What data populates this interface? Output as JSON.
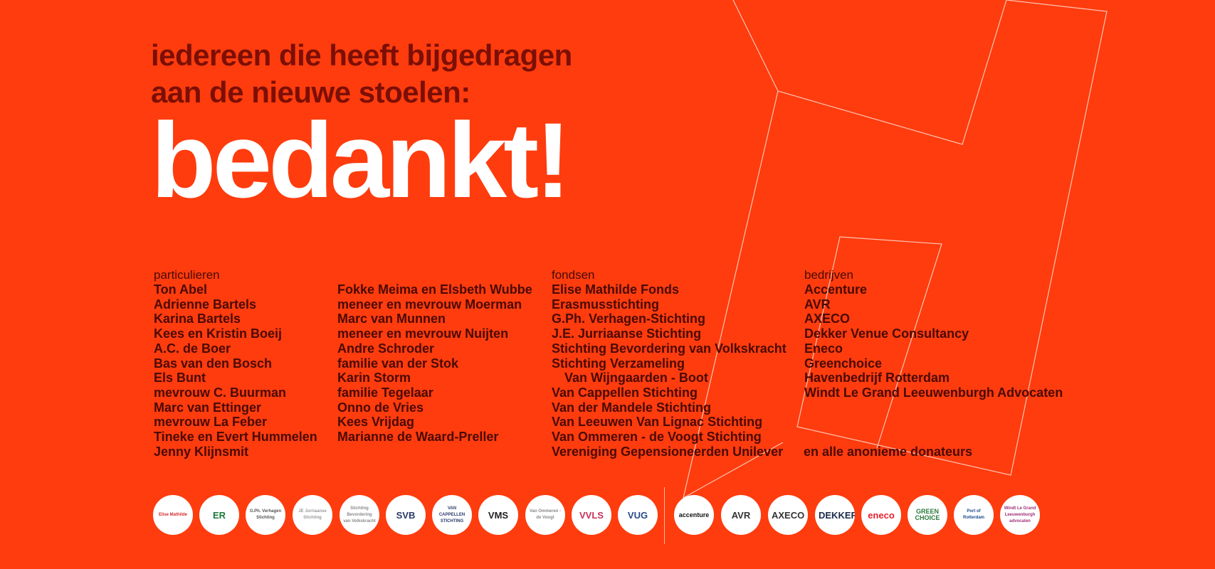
{
  "heading": {
    "line1": "iedereen die heeft bijgedragen",
    "line2": "aan de nieuwe stoelen:",
    "big": "bedankt!"
  },
  "columns": {
    "particulieren": {
      "heading": "particulieren",
      "items": [
        "Ton Abel",
        "Adrienne Bartels",
        "Karina Bartels",
        "Kees en Kristin Boeij",
        "A.C. de Boer",
        "Bas van den Bosch",
        "Els Bunt",
        "mevrouw C. Buurman",
        "Marc van Ettinger",
        "mevrouw La Feber",
        "Tineke en Evert Hummelen",
        "Jenny Klijnsmit"
      ]
    },
    "particulieren2": {
      "items": [
        "Fokke Meima en Elsbeth Wubbe",
        "meneer en mevrouw Moerman",
        "Marc van Munnen",
        "meneer en mevrouw Nuijten",
        "Andre Schroder",
        "familie van der Stok",
        "Karin Storm",
        "familie Tegelaar",
        "Onno de Vries",
        "Kees Vrijdag",
        "Marianne de Waard-Preller"
      ]
    },
    "fondsen": {
      "heading": "fondsen",
      "items": [
        "Elise Mathilde Fonds",
        "Erasmusstichting",
        "G.Ph. Verhagen-Stichting",
        "J.E. Jurriaanse Stichting",
        "Stichting Bevordering van Volkskracht",
        "Stichting Verzameling",
        "Van Wijngaarden - Boot",
        "Van Cappellen Stichting",
        "Van der Mandele Stichting",
        "Van Leeuwen Van Lignac Stichting",
        "Van Ommeren - de Voogt Stichting",
        "Vereniging Gepensioneerden Unilever"
      ]
    },
    "bedrijven": {
      "heading": "bedrijven",
      "items": [
        "Accenture",
        "AVR",
        "AXECO",
        "Dekker Venue Consultancy",
        "Eneco",
        "Greenchoice",
        "Havenbedrijf Rotterdam",
        "Windt Le Grand Leeuwenburgh Advocaten"
      ]
    }
  },
  "anonymous": "en alle anonieme donateurs",
  "logos": {
    "funds": [
      {
        "text": "Elise Mathilde",
        "color": "#d8282b"
      },
      {
        "text": "ER",
        "color": "#1c7a3a"
      },
      {
        "text": "G.Ph. Verhagen Stichting",
        "color": "#555555"
      },
      {
        "text": "JE Jurriaanse Stichting",
        "color": "#9a9a9a"
      },
      {
        "text": "Stichting Bevordering van Volkskracht",
        "color": "#8a8a8a"
      },
      {
        "text": "SVB",
        "color": "#2a3a6a"
      },
      {
        "text": "VAN CAPPELLEN STICHTING",
        "color": "#2a3a6a"
      },
      {
        "text": "VMS",
        "color": "#222222"
      },
      {
        "text": "Van Ommeren - de Voogt",
        "color": "#888888"
      },
      {
        "text": "VVLS",
        "color": "#c8325a"
      },
      {
        "text": "VUG",
        "color": "#2a4a8a"
      }
    ],
    "companies": [
      {
        "text": "accenture",
        "color": "#111111"
      },
      {
        "text": "AVR",
        "color": "#333333"
      },
      {
        "text": "AXECO",
        "color": "#333333"
      },
      {
        "text": "DEKKER",
        "color": "#1a2a4a"
      },
      {
        "text": "eneco",
        "color": "#e8222e"
      },
      {
        "text": "GREEN CHOICE",
        "color": "#2a7a3a"
      },
      {
        "text": "Port of Rotterdam",
        "color": "#1a4a8a"
      },
      {
        "text": "Windt Le Grand Leeuwenburgh advocaten",
        "color": "#a0307a"
      }
    ]
  },
  "colors": {
    "background": "#fe3c0e",
    "heading": "#7b0f05",
    "text": "#4a0a04",
    "big": "#ffffff"
  }
}
